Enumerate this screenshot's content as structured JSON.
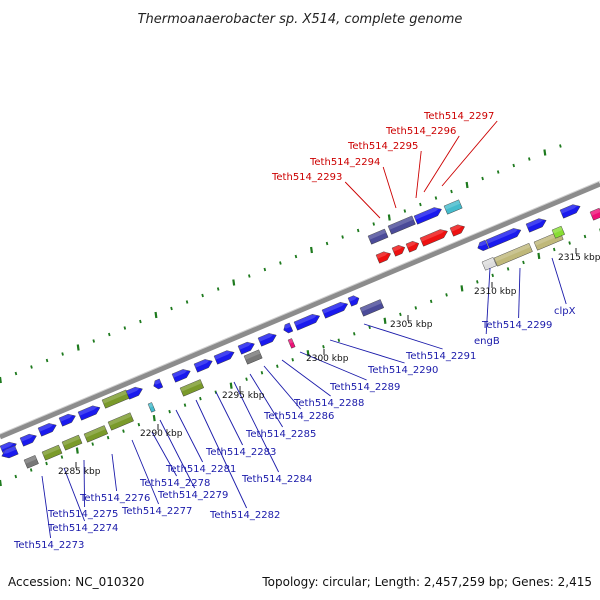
{
  "title": "Thermoanaerobacter sp. X514, complete genome",
  "footer": {
    "accession": "Accession: NC_010320",
    "summary": "Topology: circular; Length: 2,457,259 bp; Genes: 2,415"
  },
  "colors": {
    "backbone": "#8c8c8c",
    "tick": "#1e7a1e",
    "label_blue": "#1a1aaa",
    "label_red": "#cc0000",
    "gene_blue": "#1a1aee",
    "gene_purple": "#4b4b99",
    "gene_olive": "#7a9a2a",
    "gene_khaki": "#bfb87a",
    "gene_red": "#ee1111",
    "gene_gray": "#777777",
    "gene_cyan": "#44bbcc",
    "gene_pink": "#ee1177"
  },
  "scale_labels": [
    "2285 kbp",
    "2290 kbp",
    "2295 kbp",
    "2300 kbp",
    "2305 kbp",
    "2310 kbp",
    "2315 kbp"
  ],
  "gene_labels": [
    {
      "text": "Teth514_2273",
      "highlight": false
    },
    {
      "text": "Teth514_2274",
      "highlight": false
    },
    {
      "text": "Teth514_2275",
      "highlight": false
    },
    {
      "text": "Teth514_2276",
      "highlight": false
    },
    {
      "text": "Teth514_2277",
      "highlight": false
    },
    {
      "text": "Teth514_2278",
      "highlight": false
    },
    {
      "text": "Teth514_2279",
      "highlight": false
    },
    {
      "text": "Teth514_2281",
      "highlight": false
    },
    {
      "text": "Teth514_2282",
      "highlight": false
    },
    {
      "text": "Teth514_2283",
      "highlight": false
    },
    {
      "text": "Teth514_2284",
      "highlight": false
    },
    {
      "text": "Teth514_2285",
      "highlight": false
    },
    {
      "text": "Teth514_2286",
      "highlight": false
    },
    {
      "text": "Teth514_2288",
      "highlight": false
    },
    {
      "text": "Teth514_2289",
      "highlight": false
    },
    {
      "text": "Teth514_2290",
      "highlight": false
    },
    {
      "text": "Teth514_2291",
      "highlight": false
    },
    {
      "text": "engB",
      "highlight": false
    },
    {
      "text": "Teth514_2299",
      "highlight": false
    },
    {
      "text": "clpX",
      "highlight": false
    },
    {
      "text": "Teth514_2293",
      "highlight": true
    },
    {
      "text": "Teth514_2294",
      "highlight": true
    },
    {
      "text": "Teth514_2295",
      "highlight": true
    },
    {
      "text": "Teth514_2296",
      "highlight": true
    },
    {
      "text": "Teth514_2297",
      "highlight": true
    }
  ]
}
